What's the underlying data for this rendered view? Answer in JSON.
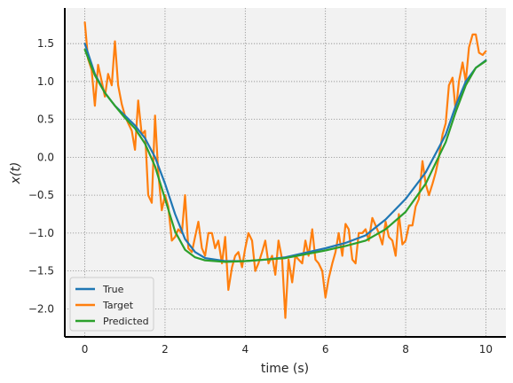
{
  "chart_data": {
    "type": "line",
    "xlabel": "time (s)",
    "ylabel": "x(t)",
    "xlim": [
      -0.5,
      10.5
    ],
    "ylim": [
      -2.37,
      1.97
    ],
    "xticks": [
      0,
      2,
      4,
      6,
      8,
      10
    ],
    "yticks": [
      -2.0,
      -1.5,
      -1.0,
      -0.5,
      0.0,
      0.5,
      1.0,
      1.5
    ],
    "xtick_labels": [
      "0",
      "2",
      "4",
      "6",
      "8",
      "10"
    ],
    "ytick_labels": [
      "−2.0",
      "−1.5",
      "−1.0",
      "−0.5",
      "0.0",
      "0.5",
      "1.0",
      "1.5"
    ],
    "grid": true,
    "legend_position": "lower-left",
    "series": [
      {
        "name": "True",
        "color": "#1f77b4",
        "x": [
          0,
          0.25,
          0.5,
          0.75,
          1.0,
          1.25,
          1.5,
          1.75,
          2.0,
          2.25,
          2.5,
          2.75,
          3.0,
          3.5,
          4.0,
          4.5,
          5.0,
          5.5,
          6.0,
          6.5,
          7.0,
          7.5,
          8.0,
          8.5,
          9.0,
          9.25,
          9.5,
          9.75,
          10.0
        ],
        "y": [
          1.5,
          1.1,
          0.85,
          0.68,
          0.55,
          0.42,
          0.25,
          0.0,
          -0.35,
          -0.75,
          -1.08,
          -1.25,
          -1.33,
          -1.37,
          -1.37,
          -1.35,
          -1.32,
          -1.26,
          -1.2,
          -1.13,
          -1.03,
          -0.82,
          -0.55,
          -0.2,
          0.3,
          0.68,
          1.0,
          1.18,
          1.28
        ]
      },
      {
        "name": "Target",
        "color": "#ff7f0e",
        "x": [
          0.0,
          0.08,
          0.17,
          0.25,
          0.33,
          0.42,
          0.5,
          0.58,
          0.67,
          0.75,
          0.83,
          0.92,
          1.0,
          1.08,
          1.17,
          1.25,
          1.33,
          1.42,
          1.5,
          1.58,
          1.67,
          1.75,
          1.83,
          1.92,
          2.0,
          2.08,
          2.17,
          2.25,
          2.33,
          2.42,
          2.5,
          2.58,
          2.67,
          2.75,
          2.83,
          2.92,
          3.0,
          3.08,
          3.17,
          3.25,
          3.33,
          3.42,
          3.5,
          3.58,
          3.67,
          3.75,
          3.83,
          3.92,
          4.0,
          4.08,
          4.17,
          4.25,
          4.33,
          4.42,
          4.5,
          4.58,
          4.67,
          4.75,
          4.83,
          4.92,
          5.0,
          5.08,
          5.17,
          5.25,
          5.33,
          5.42,
          5.5,
          5.58,
          5.67,
          5.75,
          5.83,
          5.92,
          6.0,
          6.08,
          6.17,
          6.25,
          6.33,
          6.42,
          6.5,
          6.58,
          6.67,
          6.75,
          6.83,
          6.92,
          7.0,
          7.08,
          7.17,
          7.25,
          7.33,
          7.42,
          7.5,
          7.58,
          7.67,
          7.75,
          7.83,
          7.92,
          8.0,
          8.08,
          8.17,
          8.25,
          8.33,
          8.42,
          8.5,
          8.58,
          8.67,
          8.75,
          8.83,
          8.92,
          9.0,
          9.08,
          9.17,
          9.25,
          9.33,
          9.42,
          9.5,
          9.58,
          9.67,
          9.75,
          9.83,
          9.92,
          10.0
        ],
        "y": [
          1.78,
          1.3,
          1.15,
          0.68,
          1.22,
          1.0,
          0.8,
          1.1,
          0.95,
          1.53,
          0.95,
          0.7,
          0.55,
          0.45,
          0.35,
          0.1,
          0.75,
          0.3,
          0.35,
          -0.5,
          -0.6,
          0.55,
          -0.2,
          -0.7,
          -0.5,
          -0.65,
          -1.1,
          -1.05,
          -0.95,
          -1.0,
          -0.5,
          -1.2,
          -1.25,
          -1.05,
          -0.85,
          -1.2,
          -1.3,
          -1.0,
          -1.0,
          -1.2,
          -1.1,
          -1.4,
          -1.05,
          -1.75,
          -1.45,
          -1.3,
          -1.25,
          -1.45,
          -1.2,
          -1.0,
          -1.1,
          -1.5,
          -1.4,
          -1.25,
          -1.1,
          -1.4,
          -1.3,
          -1.55,
          -1.1,
          -1.35,
          -2.12,
          -1.35,
          -1.65,
          -1.3,
          -1.35,
          -1.4,
          -1.1,
          -1.3,
          -0.95,
          -1.35,
          -1.4,
          -1.5,
          -1.85,
          -1.6,
          -1.4,
          -1.25,
          -1.0,
          -1.3,
          -0.88,
          -0.95,
          -1.35,
          -1.4,
          -1.0,
          -1.0,
          -0.95,
          -1.1,
          -0.8,
          -0.9,
          -1.0,
          -1.15,
          -0.85,
          -1.05,
          -1.1,
          -1.3,
          -0.75,
          -1.15,
          -1.1,
          -0.9,
          -0.9,
          -0.65,
          -0.55,
          -0.05,
          -0.35,
          -0.5,
          -0.35,
          -0.2,
          0.0,
          0.3,
          0.45,
          0.95,
          1.05,
          0.6,
          1.0,
          1.25,
          1.0,
          1.45,
          1.62,
          1.62,
          1.38,
          1.35,
          1.4
        ],
        "note": ""
      },
      {
        "name": "Predicted",
        "color": "#2ca02c",
        "x": [
          0,
          0.25,
          0.5,
          0.75,
          1.0,
          1.25,
          1.5,
          1.75,
          2.0,
          2.25,
          2.5,
          2.75,
          3.0,
          3.5,
          4.0,
          4.5,
          5.0,
          5.5,
          6.0,
          6.5,
          7.0,
          7.5,
          8.0,
          8.5,
          9.0,
          9.25,
          9.5,
          9.75,
          10.0
        ],
        "y": [
          1.42,
          1.08,
          0.85,
          0.68,
          0.52,
          0.38,
          0.18,
          -0.12,
          -0.55,
          -0.98,
          -1.22,
          -1.32,
          -1.36,
          -1.38,
          -1.37,
          -1.35,
          -1.33,
          -1.28,
          -1.23,
          -1.17,
          -1.1,
          -0.95,
          -0.72,
          -0.35,
          0.2,
          0.6,
          0.95,
          1.18,
          1.27
        ]
      }
    ]
  }
}
